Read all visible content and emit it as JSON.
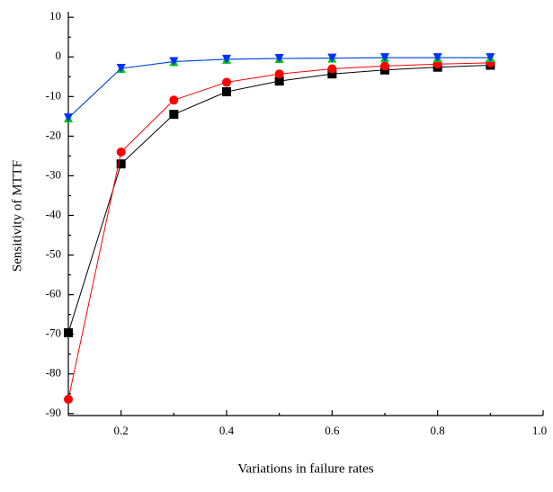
{
  "chart_data": {
    "type": "line",
    "xlabel": "Variations in failure rates",
    "ylabel": "Sensitivity of MTTF",
    "x": [
      0.1,
      0.2,
      0.3,
      0.4,
      0.5,
      0.6,
      0.7,
      0.8,
      0.9
    ],
    "series": [
      {
        "color": "#000000",
        "marker": "square",
        "values": [
          -69.6,
          -27,
          -14.5,
          -8.8,
          -6.1,
          -4.3,
          -3.3,
          -2.6,
          -2.1
        ]
      },
      {
        "color": "#ff0000",
        "marker": "circle",
        "values": [
          -86.4,
          -24,
          -10.9,
          -6.4,
          -4.3,
          -3,
          -2.3,
          -1.8,
          -1.5
        ]
      },
      {
        "color": "#00cc00",
        "marker": "triangle-up",
        "values": [
          -15.4,
          -2.9,
          -1.2,
          -0.6,
          -0.4,
          -0.3,
          -0.2,
          -0.2,
          -0.2
        ]
      },
      {
        "color": "#0033ff",
        "marker": "triangle-down",
        "values": [
          -15.4,
          -2.9,
          -1.2,
          -0.6,
          -0.4,
          -0.3,
          -0.2,
          -0.2,
          -0.2
        ]
      }
    ],
    "xlim": [
      0.1,
      1.0
    ],
    "xticks": [
      0.2,
      0.4,
      0.6,
      0.8,
      {
        "value": 1,
        "label": "1.0"
      }
    ],
    "ylim": [
      -90.5,
      10.5
    ],
    "yticks": [
      10,
      0,
      -10,
      -20,
      -30,
      -40,
      -50,
      -60,
      -70,
      -80,
      -90
    ]
  }
}
